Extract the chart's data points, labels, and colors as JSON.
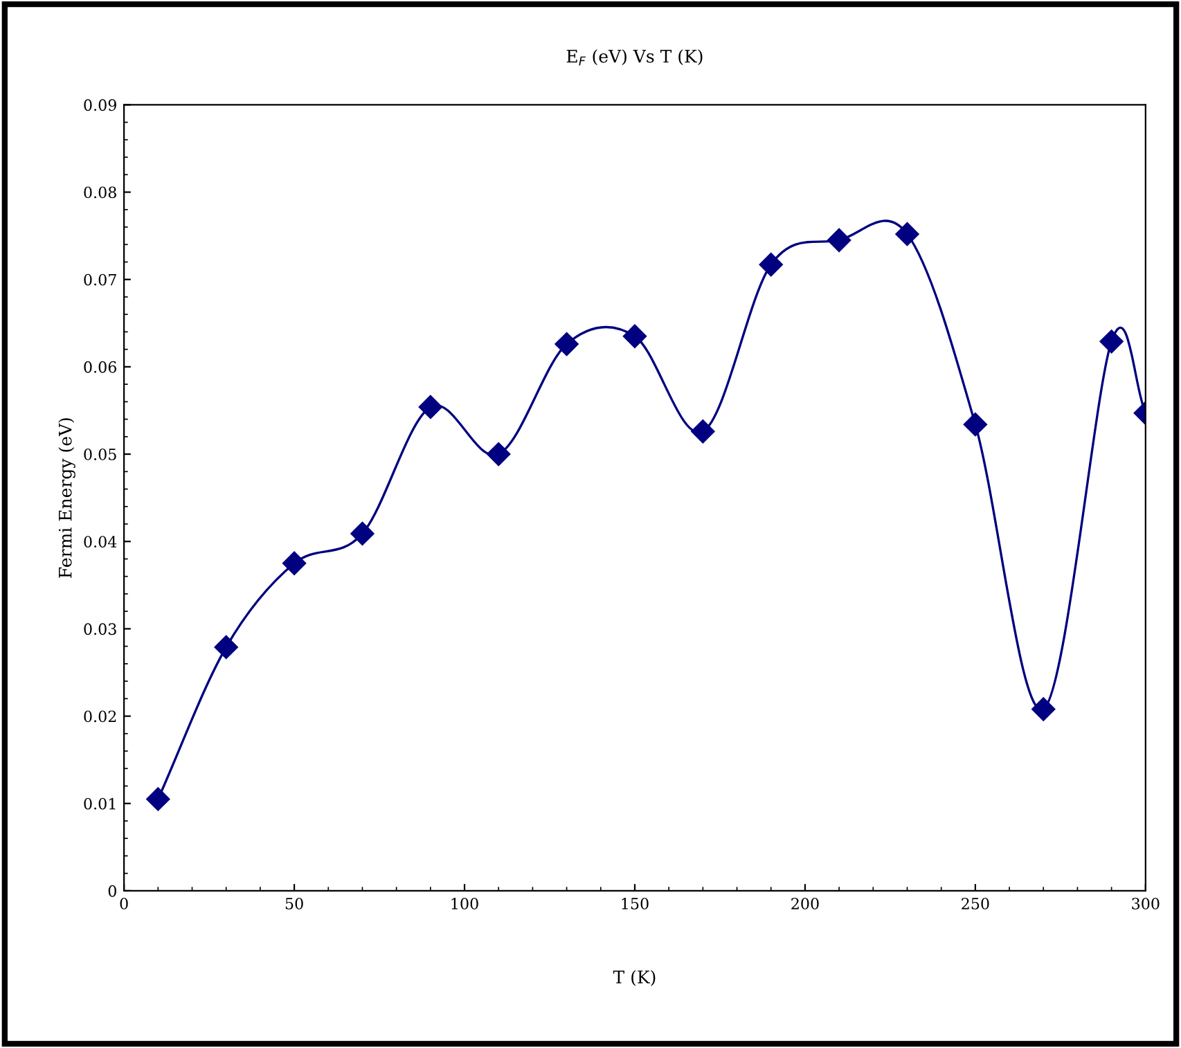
{
  "chart_data": {
    "type": "line",
    "title": "E$_{F}$ (eV) Vs T (K)",
    "xlabel": "T (K)",
    "ylabel": "Fermi Energy (eV)",
    "x": [
      10,
      30,
      50,
      70,
      90,
      110,
      130,
      150,
      170,
      190,
      210,
      230,
      250,
      270,
      290,
      300
    ],
    "series": [
      {
        "color": "#000080",
        "values": [
          0.0105,
          0.0279,
          0.0375,
          0.0409,
          0.0554,
          0.05,
          0.0626,
          0.0635,
          0.0526,
          0.0717,
          0.0745,
          0.0752,
          0.0534,
          0.0208,
          0.0629,
          0.0547
        ]
      }
    ],
    "xlim": [
      0,
      300
    ],
    "xticks": [
      0,
      50,
      100,
      150,
      200,
      250,
      300
    ],
    "ylim": [
      0,
      0.09
    ],
    "yticks": [
      0,
      0.01,
      0.02,
      0.03,
      0.04,
      0.05,
      0.06,
      0.07,
      0.08,
      0.09
    ],
    "marker": "diamond",
    "line_style": "solid",
    "grid": false,
    "legend": false
  }
}
